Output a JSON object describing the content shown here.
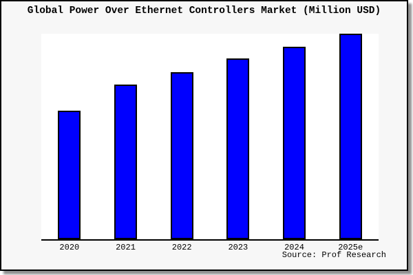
{
  "title": "Global Power Over Ethernet Controllers Market (Million USD)",
  "source_credit": "Source: Prof Research",
  "colors": {
    "bar_fill": "#0000ff",
    "bar_border": "#000000",
    "plot_background": "#ffffff",
    "canvas_background": "#f7f7f7",
    "frame_border": "#000000",
    "drop_shadow": "#8f8f8f",
    "text": "#000000"
  },
  "chart_data": {
    "type": "bar",
    "title": "Global Power Over Ethernet Controllers Market (Million USD)",
    "categories": [
      "2020",
      "2021",
      "2022",
      "2023",
      "2024",
      "2025e"
    ],
    "values": [
      62.7,
      75.2,
      81.4,
      87.9,
      93.7,
      100
    ],
    "values_note": "percent of tallest bar; chart shows no y-axis scale, ticks or gridlines",
    "xlabel": "",
    "ylabel": "",
    "ylim": [
      0,
      100
    ],
    "grid": false,
    "legend": false,
    "bar_color": "#0000ff",
    "source": "Source: Prof Research"
  }
}
